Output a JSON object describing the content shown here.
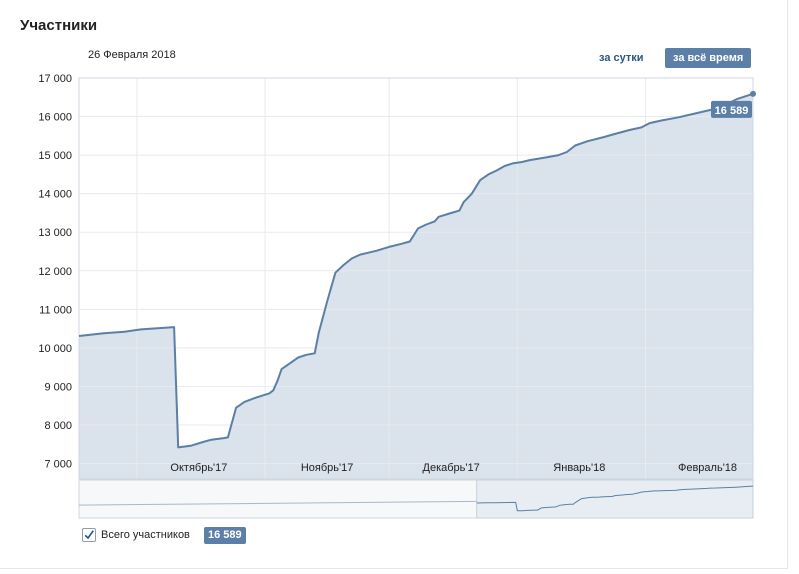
{
  "header": {
    "title": "Участники",
    "date": "26 Февраля 2018",
    "btn_day": "за сутки",
    "btn_all": "за всё время"
  },
  "legend": {
    "label": "Всего участников",
    "value": "16 589"
  },
  "colors": {
    "line": "#5b7fa6",
    "fill": "#dae2eb",
    "grid": "#e7eaee",
    "badge": "#5b7fa6"
  },
  "icons": {
    "checkbox": "checkmark-icon"
  },
  "chart_data": {
    "type": "area",
    "ylim": [
      6600,
      17000
    ],
    "yticks": [
      7000,
      8000,
      9000,
      10000,
      11000,
      12000,
      13000,
      14000,
      15000,
      16000,
      17000
    ],
    "ytick_labels": [
      "7 000",
      "8 000",
      "9 000",
      "10 000",
      "11 000",
      "12 000",
      "13 000",
      "14 000",
      "15 000",
      "16 000",
      "17 000"
    ],
    "xlim": [
      "2017-09-16",
      "2018-02-26"
    ],
    "x_boundaries": [
      "2017-09-30",
      "2017-10-31",
      "2017-11-30",
      "2017-12-31",
      "2018-01-31"
    ],
    "x_labels": [
      {
        "date": "2017-10-15",
        "label": "Октябрь'17"
      },
      {
        "date": "2017-11-15",
        "label": "Ноябрь'17"
      },
      {
        "date": "2017-12-15",
        "label": "Декабрь'17"
      },
      {
        "date": "2018-01-15",
        "label": "Январь'18"
      },
      {
        "date": "2018-02-15",
        "label": "Февраль'18"
      }
    ],
    "last_value_label": "16 589",
    "series": [
      {
        "name": "Всего участников",
        "points": [
          [
            "2017-09-16",
            10310
          ],
          [
            "2017-09-22",
            10380
          ],
          [
            "2017-09-27",
            10420
          ],
          [
            "2017-10-01",
            10480
          ],
          [
            "2017-10-09",
            10540
          ],
          [
            "2017-10-10",
            7420
          ],
          [
            "2017-10-13",
            7460
          ],
          [
            "2017-10-16",
            7560
          ],
          [
            "2017-10-18",
            7620
          ],
          [
            "2017-10-21",
            7660
          ],
          [
            "2017-10-22",
            7680
          ],
          [
            "2017-10-24",
            8450
          ],
          [
            "2017-10-26",
            8600
          ],
          [
            "2017-10-29",
            8720
          ],
          [
            "2017-11-01",
            8820
          ],
          [
            "2017-11-02",
            8900
          ],
          [
            "2017-11-03",
            9150
          ],
          [
            "2017-11-04",
            9450
          ],
          [
            "2017-11-06",
            9600
          ],
          [
            "2017-11-08",
            9750
          ],
          [
            "2017-11-10",
            9820
          ],
          [
            "2017-11-12",
            9860
          ],
          [
            "2017-11-13",
            10400
          ],
          [
            "2017-11-15",
            11200
          ],
          [
            "2017-11-17",
            11950
          ],
          [
            "2017-11-19",
            12150
          ],
          [
            "2017-11-21",
            12320
          ],
          [
            "2017-11-23",
            12420
          ],
          [
            "2017-11-25",
            12470
          ],
          [
            "2017-11-27",
            12520
          ],
          [
            "2017-11-30",
            12620
          ],
          [
            "2017-12-03",
            12700
          ],
          [
            "2017-12-05",
            12760
          ],
          [
            "2017-12-07",
            13100
          ],
          [
            "2017-12-09",
            13200
          ],
          [
            "2017-12-11",
            13280
          ],
          [
            "2017-12-12",
            13400
          ],
          [
            "2017-12-15",
            13500
          ],
          [
            "2017-12-17",
            13560
          ],
          [
            "2017-12-18",
            13780
          ],
          [
            "2017-12-20",
            14000
          ],
          [
            "2017-12-22",
            14350
          ],
          [
            "2017-12-24",
            14500
          ],
          [
            "2017-12-26",
            14600
          ],
          [
            "2017-12-28",
            14720
          ],
          [
            "2017-12-30",
            14790
          ],
          [
            "2018-01-01",
            14820
          ],
          [
            "2018-01-03",
            14870
          ],
          [
            "2018-01-07",
            14940
          ],
          [
            "2018-01-10",
            15000
          ],
          [
            "2018-01-12",
            15080
          ],
          [
            "2018-01-14",
            15250
          ],
          [
            "2018-01-17",
            15360
          ],
          [
            "2018-01-21",
            15470
          ],
          [
            "2018-01-24",
            15560
          ],
          [
            "2018-01-27",
            15650
          ],
          [
            "2018-01-30",
            15720
          ],
          [
            "2018-02-01",
            15830
          ],
          [
            "2018-02-04",
            15900
          ],
          [
            "2018-02-08",
            15980
          ],
          [
            "2018-02-12",
            16080
          ],
          [
            "2018-02-16",
            16180
          ],
          [
            "2018-02-19",
            16280
          ],
          [
            "2018-02-22",
            16450
          ],
          [
            "2018-02-26",
            16589
          ]
        ]
      }
    ]
  }
}
